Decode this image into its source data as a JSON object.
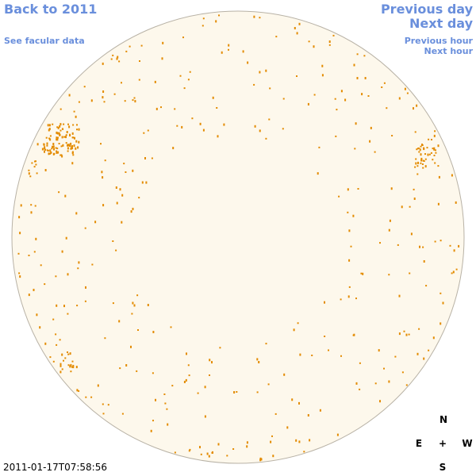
{
  "links": {
    "back": "Back to 2011",
    "facular": "See facular data",
    "previous_day": "Previous day",
    "next_day": "Next day",
    "previous_hour": "Previous hour",
    "next_hour": "Next hour"
  },
  "timestamp": "2011-01-17T07:58:56",
  "compass": {
    "north": "N",
    "east": "E",
    "center": "+",
    "west": "W",
    "south": "S"
  }
}
